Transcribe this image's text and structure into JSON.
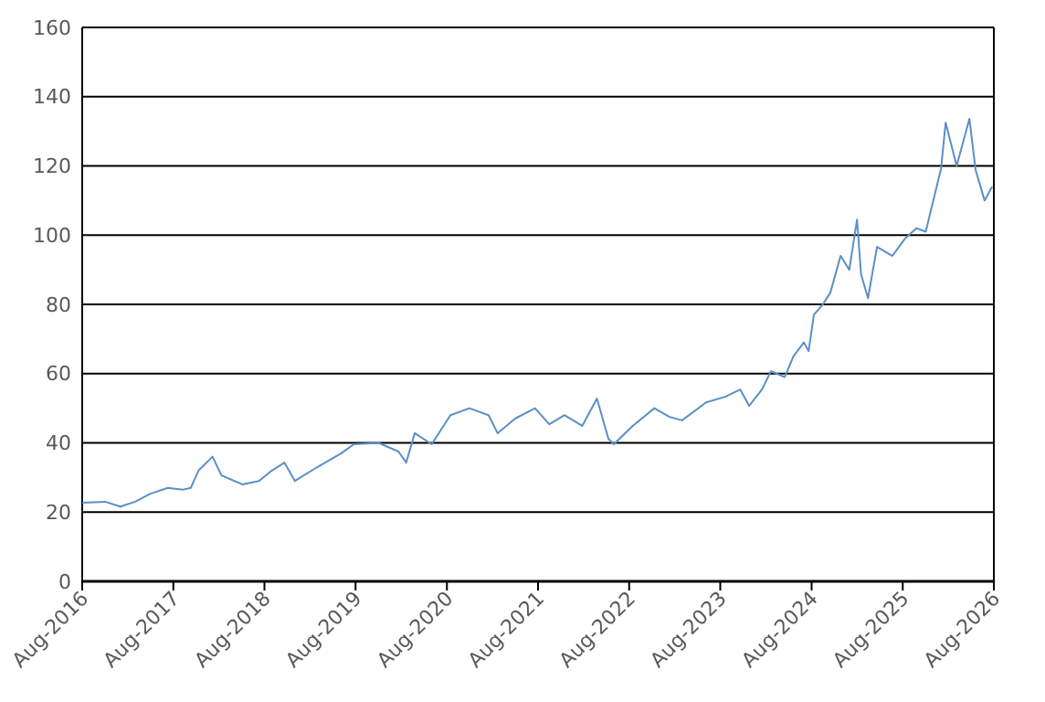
{
  "chart_data": {
    "type": "line",
    "grid": "y",
    "xlim": [
      "2016-08-01",
      "2026-08-01"
    ],
    "xticks": [
      {
        "value": "2016-08-01",
        "label": "Aug-2016"
      },
      {
        "value": "2017-08-01",
        "label": "Aug-2017"
      },
      {
        "value": "2018-08-01",
        "label": "Aug-2018"
      },
      {
        "value": "2019-08-01",
        "label": "Aug-2019"
      },
      {
        "value": "2020-08-01",
        "label": "Aug-2020"
      },
      {
        "value": "2021-08-01",
        "label": "Aug-2021"
      },
      {
        "value": "2022-08-01",
        "label": "Aug-2022"
      },
      {
        "value": "2023-08-01",
        "label": "Aug-2023"
      },
      {
        "value": "2024-08-01",
        "label": "Aug-2024"
      },
      {
        "value": "2025-08-01",
        "label": "Aug-2025"
      },
      {
        "value": "2026-08-01",
        "label": "Aug-2026"
      }
    ],
    "ylim": [
      0,
      160
    ],
    "yticks": [
      0,
      20,
      40,
      60,
      80,
      100,
      120,
      140,
      160
    ],
    "series": [
      {
        "color": "#5b8fc7",
        "x": [
          "2016-08-01",
          "2016-11-01",
          "2017-01-01",
          "2017-03-01",
          "2017-05-01",
          "2017-07-10",
          "2017-09-10",
          "2017-10-10",
          "2017-11-10",
          "2018-01-05",
          "2018-02-10",
          "2018-05-05",
          "2018-07-10",
          "2018-08-25",
          "2018-10-20",
          "2018-12-01",
          "2019-03-01",
          "2019-06-05",
          "2019-07-25",
          "2019-11-01",
          "2020-01-20",
          "2020-02-20",
          "2020-03-25",
          "2020-06-01",
          "2020-08-15",
          "2020-10-30",
          "2021-01-15",
          "2021-02-20",
          "2021-05-01",
          "2021-07-20",
          "2021-09-15",
          "2021-11-15",
          "2022-01-25",
          "2022-03-25",
          "2022-05-10",
          "2022-06-01",
          "2022-08-15",
          "2022-11-10",
          "2023-01-10",
          "2023-03-01",
          "2023-06-05",
          "2023-08-20",
          "2023-10-20",
          "2023-11-25",
          "2024-01-15",
          "2024-02-20",
          "2024-04-15",
          "2024-05-20",
          "2024-07-01",
          "2024-07-20",
          "2024-08-10",
          "2024-09-15",
          "2024-10-15",
          "2024-11-25",
          "2024-12-30",
          "2025-01-30",
          "2025-02-15",
          "2025-03-15",
          "2025-04-20",
          "2025-06-20",
          "2025-08-10",
          "2025-09-25",
          "2025-11-01",
          "2026-01-01",
          "2026-01-20",
          "2026-03-05",
          "2026-04-25",
          "2026-05-20",
          "2026-06-25",
          "2026-07-25"
        ],
        "values": [
          22.7,
          23,
          21.6,
          23,
          25.3,
          27,
          26.5,
          27,
          32,
          36,
          30.6,
          28,
          29,
          31.7,
          34.3,
          29,
          33,
          37,
          39.6,
          40,
          37.5,
          34.3,
          42.8,
          39.6,
          48,
          50,
          48,
          42.8,
          47,
          50,
          45.4,
          48,
          44.9,
          52.8,
          41.2,
          39.6,
          44.9,
          50,
          47.5,
          46.5,
          51.7,
          53.3,
          55.4,
          50.7,
          55.4,
          60.7,
          59,
          65,
          69,
          66.5,
          77,
          80,
          83.4,
          94,
          90,
          104.5,
          88.7,
          81.8,
          96.6,
          94,
          99,
          102,
          101,
          119,
          132.5,
          120,
          133.6,
          118.8,
          110,
          114
        ]
      }
    ]
  }
}
